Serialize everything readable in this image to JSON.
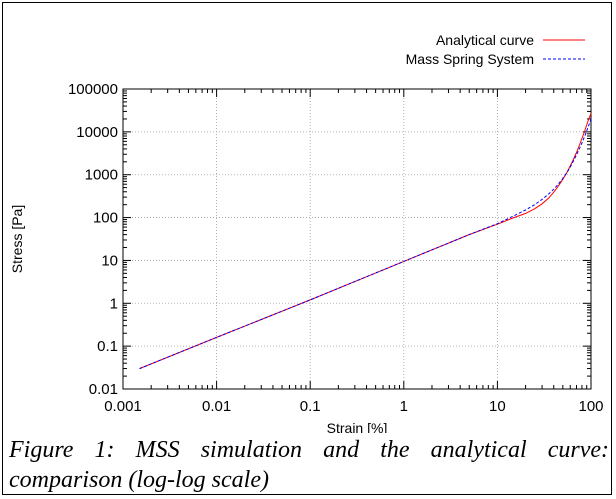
{
  "caption": "Figure 1: MSS simulation and the analytical curve: comparison (log-log scale)",
  "chart_data": {
    "type": "line",
    "title": "",
    "xlabel": "Strain [%]",
    "ylabel": "Stress [Pa]",
    "xscale": "log",
    "yscale": "log",
    "xlim": [
      0.001,
      100
    ],
    "ylim": [
      0.01,
      100000
    ],
    "x_ticks": [
      0.001,
      0.01,
      0.1,
      1,
      10,
      100
    ],
    "x_tick_labels": [
      "0.001",
      "0.01",
      "0.1",
      "1",
      "10",
      "100"
    ],
    "y_ticks": [
      0.01,
      0.1,
      1,
      10,
      100,
      1000,
      10000,
      100000
    ],
    "y_tick_labels": [
      "0.01",
      "0.1",
      "1",
      "10",
      "100",
      "1000",
      "10000",
      "100000"
    ],
    "grid": true,
    "legend_position": "top-right",
    "series": [
      {
        "name": "Analytical curve",
        "color": "#ff0000",
        "dash": "solid",
        "x": [
          0.0015,
          0.01,
          0.1,
          1,
          5,
          10,
          15,
          20,
          25,
          30,
          35,
          40,
          45,
          50,
          55,
          60,
          65,
          70,
          75,
          80,
          85,
          90,
          95,
          100
        ],
        "y": [
          0.03,
          0.16,
          1.2,
          9.5,
          40,
          70,
          100,
          125,
          160,
          210,
          280,
          390,
          550,
          780,
          1100,
          1600,
          2300,
          3300,
          4800,
          7000,
          10000,
          14500,
          20500,
          27000
        ]
      },
      {
        "name": "Mass Spring System",
        "color": "#0000ff",
        "dash": "dashed",
        "x": [
          0.0015,
          0.01,
          0.1,
          1,
          5,
          10,
          15,
          20,
          25,
          30,
          35,
          40,
          45,
          50,
          55,
          60,
          65,
          70,
          75,
          80,
          85,
          90,
          95,
          100
        ],
        "y": [
          0.03,
          0.16,
          1.2,
          9.5,
          40,
          72,
          110,
          150,
          200,
          265,
          350,
          460,
          610,
          820,
          1100,
          1500,
          2100,
          2900,
          4000,
          5500,
          7600,
          10500,
          14500,
          20000
        ]
      }
    ]
  }
}
